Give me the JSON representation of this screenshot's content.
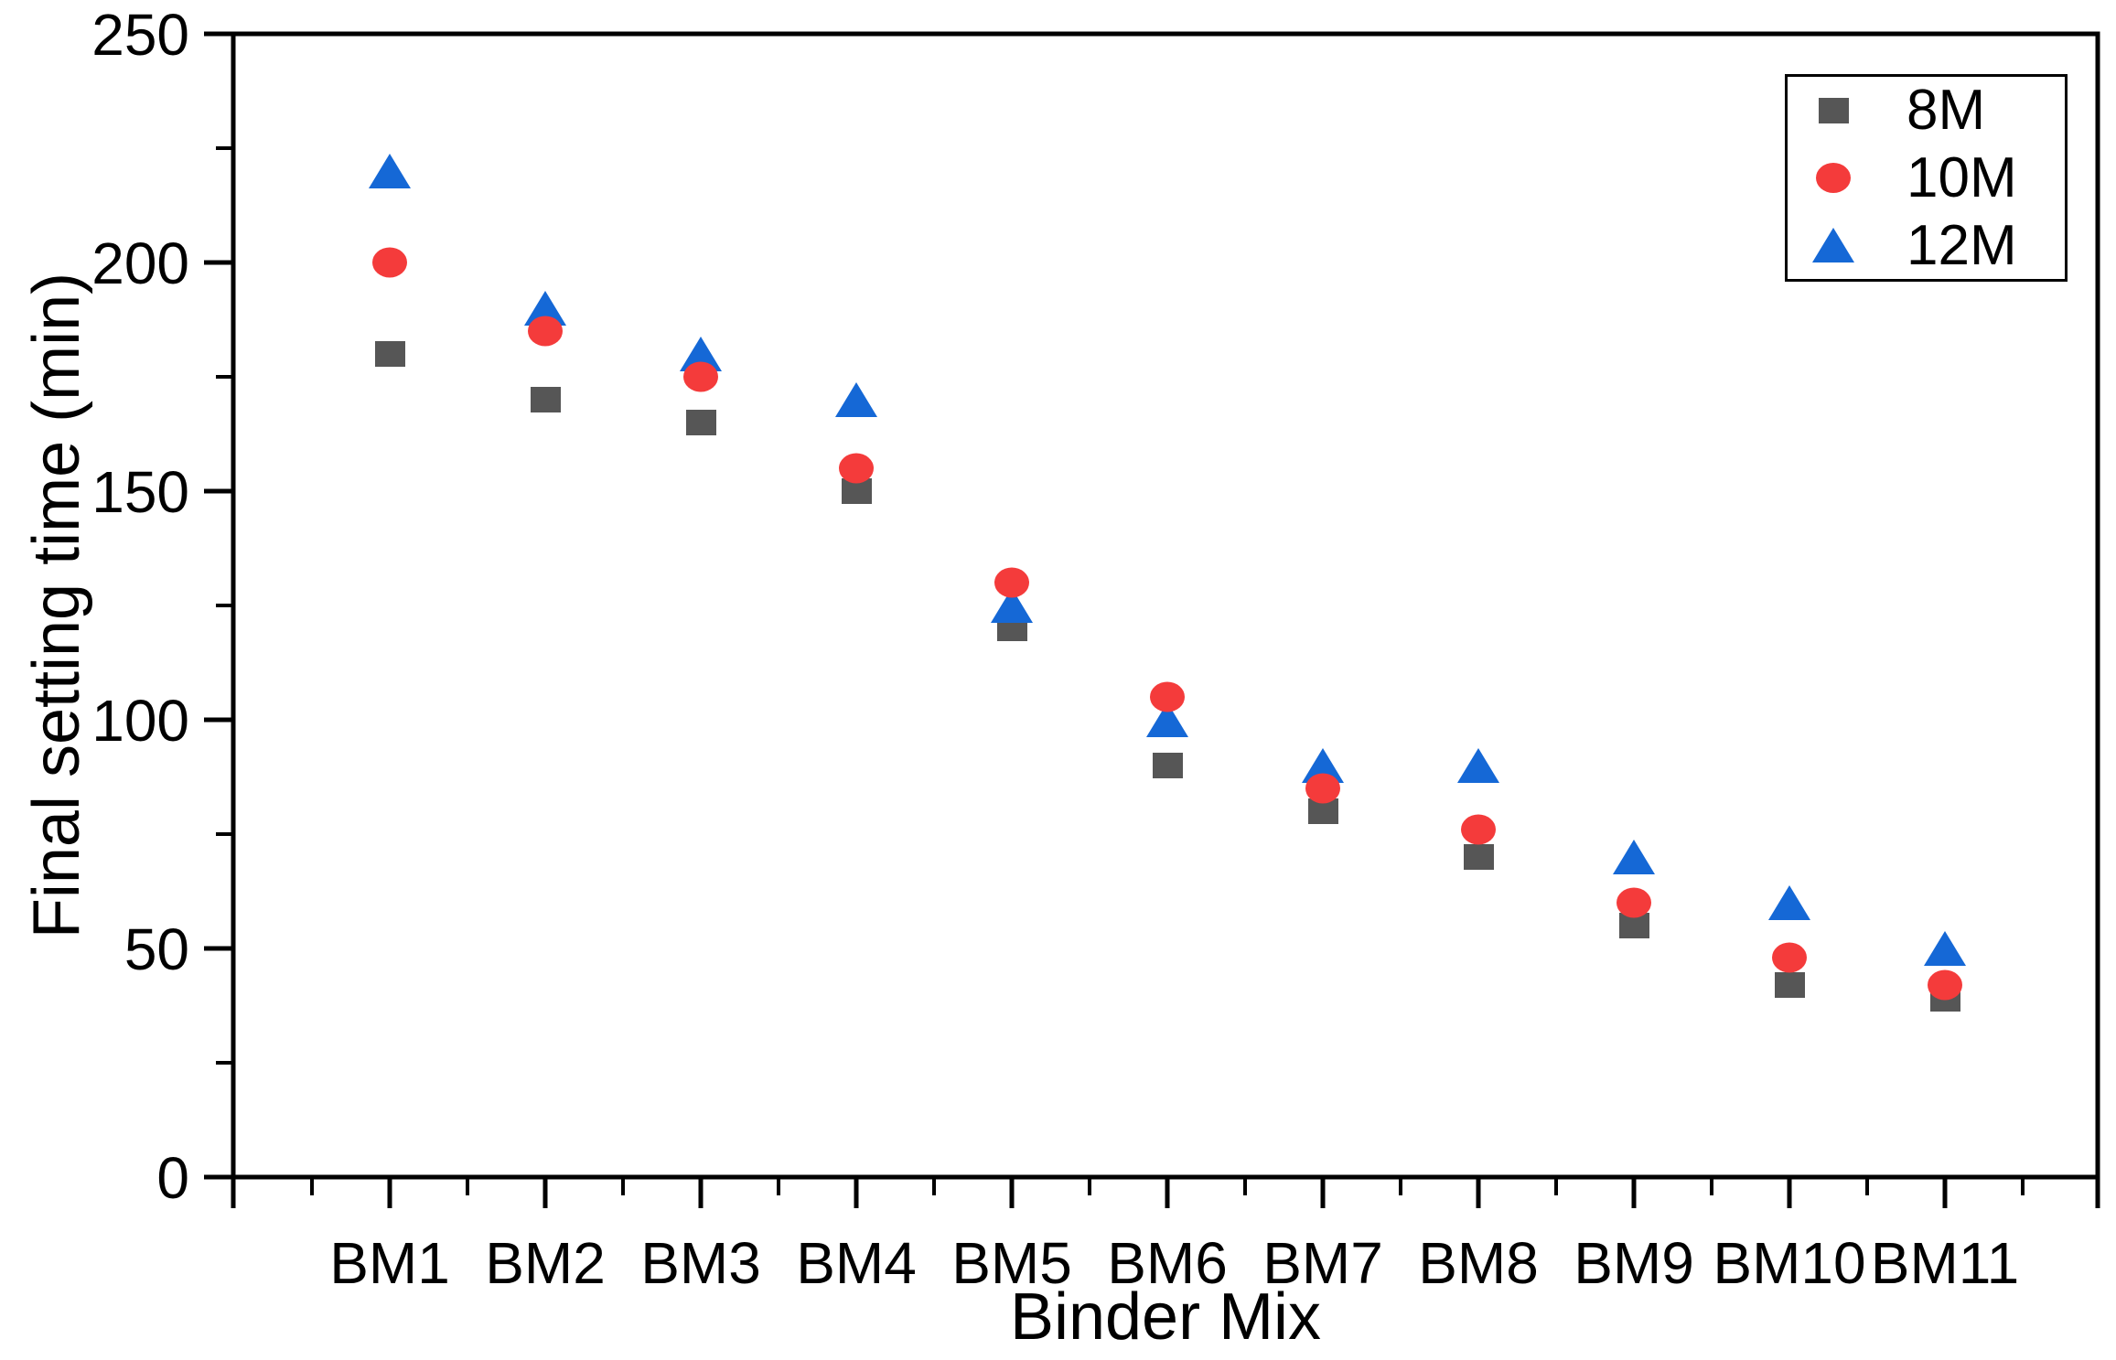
{
  "figure": {
    "xlabel": "Binder Mix",
    "ylabel": "Final setting time (min)"
  },
  "legend": {
    "items": [
      {
        "label": "8M",
        "marker": "square",
        "color": "#565656"
      },
      {
        "label": "10M",
        "marker": "circle",
        "color": "#f43b3b"
      },
      {
        "label": "12M",
        "marker": "triangle",
        "color": "#1568d6"
      }
    ]
  },
  "colors": {
    "axis": "#000000",
    "background": "#ffffff",
    "series_8M": "#565656",
    "series_10M": "#f43b3b",
    "series_12M": "#1568d6"
  },
  "chart_data": {
    "type": "scatter",
    "title": "",
    "xlabel": "Binder Mix",
    "ylabel": "Final setting time (min)",
    "categories": [
      "BM1",
      "BM2",
      "BM3",
      "BM4",
      "BM5",
      "BM6",
      "BM7",
      "BM8",
      "BM9",
      "BM10",
      "BM11"
    ],
    "series": [
      {
        "name": "8M",
        "marker": "square",
        "color": "#565656",
        "values": [
          180,
          170,
          165,
          150,
          120,
          90,
          80,
          70,
          55,
          42,
          39
        ]
      },
      {
        "name": "10M",
        "marker": "circle",
        "color": "#f43b3b",
        "values": [
          200,
          185,
          175,
          155,
          130,
          105,
          85,
          76,
          60,
          48,
          42
        ]
      },
      {
        "name": "12M",
        "marker": "triangle",
        "color": "#1568d6",
        "values": [
          220,
          190,
          180,
          170,
          125,
          100,
          90,
          90,
          70,
          60,
          50
        ]
      }
    ],
    "ylim": [
      0,
      250
    ],
    "yticks": [
      0,
      50,
      100,
      150,
      200,
      250
    ],
    "y_minor_ticks": [
      25,
      75,
      125,
      175,
      225
    ],
    "x_minor_ticks": "between-categories",
    "grid": false,
    "legend_position": "top-right",
    "plot_frame": "full-box"
  }
}
